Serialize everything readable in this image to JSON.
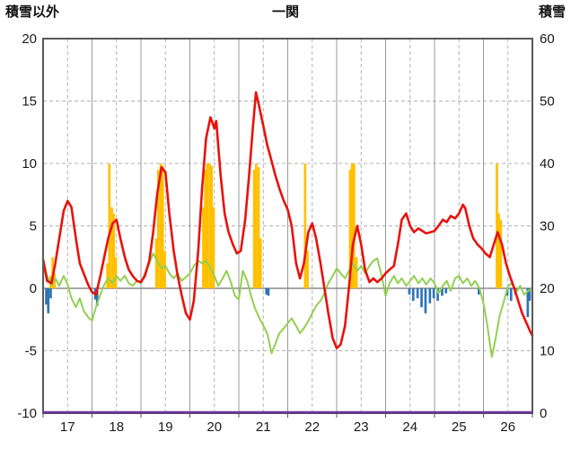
{
  "chart_data": {
    "type": "line+bar",
    "title": "一関",
    "left_axis": {
      "label": "積雪以外",
      "min": -10,
      "max": 20,
      "ticks": [
        20,
        15,
        10,
        5,
        0,
        -5,
        -10
      ]
    },
    "right_axis": {
      "label": "積雪",
      "min": 0,
      "max": 60,
      "ticks": [
        60,
        50,
        40,
        30,
        20,
        10,
        0
      ]
    },
    "x_axis": {
      "min": 17,
      "max": 27,
      "day_labels": [
        "17",
        "18",
        "19",
        "20",
        "21",
        "22",
        "23",
        "24",
        "25",
        "26"
      ]
    },
    "grid": {
      "horizontal": "dashed",
      "vertical_day": "solid",
      "vertical_half_day": "dashed",
      "zero_line": true
    },
    "colors": {
      "red_line": "#e8120c",
      "green_line": "#92d050",
      "orange_bars": "#ffc000",
      "blue_bars": "#2e75b6",
      "purple_line": "#7030a0",
      "border": "#595959",
      "gridline": "#b3b3b3",
      "text": "#1a1a1a"
    },
    "series": {
      "red_line": {
        "color": "#e8120c",
        "points": [
          [
            17.0,
            2.3
          ],
          [
            17.08,
            0.6
          ],
          [
            17.17,
            0.4
          ],
          [
            17.25,
            2.0
          ],
          [
            17.33,
            4.0
          ],
          [
            17.42,
            6.2
          ],
          [
            17.5,
            7.0
          ],
          [
            17.58,
            6.5
          ],
          [
            17.67,
            4.0
          ],
          [
            17.75,
            2.0
          ],
          [
            17.83,
            1.2
          ],
          [
            17.92,
            0.3
          ],
          [
            18.0,
            -0.3
          ],
          [
            18.08,
            -0.5
          ],
          [
            18.17,
            1.0
          ],
          [
            18.25,
            2.5
          ],
          [
            18.33,
            4.0
          ],
          [
            18.42,
            5.2
          ],
          [
            18.5,
            5.5
          ],
          [
            18.58,
            4.0
          ],
          [
            18.67,
            2.5
          ],
          [
            18.75,
            1.5
          ],
          [
            18.83,
            1.0
          ],
          [
            18.92,
            0.6
          ],
          [
            19.0,
            0.5
          ],
          [
            19.08,
            1.0
          ],
          [
            19.17,
            2.2
          ],
          [
            19.25,
            4.5
          ],
          [
            19.33,
            7.5
          ],
          [
            19.42,
            9.7
          ],
          [
            19.5,
            9.3
          ],
          [
            19.58,
            6.0
          ],
          [
            19.67,
            3.0
          ],
          [
            19.75,
            1.0
          ],
          [
            19.83,
            -0.5
          ],
          [
            19.92,
            -2.0
          ],
          [
            20.0,
            -2.5
          ],
          [
            20.08,
            -1.0
          ],
          [
            20.17,
            3.0
          ],
          [
            20.25,
            8.0
          ],
          [
            20.33,
            12.0
          ],
          [
            20.42,
            13.7
          ],
          [
            20.5,
            12.8
          ],
          [
            20.54,
            13.4
          ],
          [
            20.63,
            9.0
          ],
          [
            20.71,
            6.0
          ],
          [
            20.79,
            4.5
          ],
          [
            20.88,
            3.5
          ],
          [
            20.96,
            2.8
          ],
          [
            21.04,
            3.0
          ],
          [
            21.13,
            5.5
          ],
          [
            21.21,
            9.0
          ],
          [
            21.29,
            13.0
          ],
          [
            21.35,
            15.7
          ],
          [
            21.42,
            14.5
          ],
          [
            21.5,
            13.0
          ],
          [
            21.58,
            11.5
          ],
          [
            21.67,
            10.2
          ],
          [
            21.75,
            9.0
          ],
          [
            21.83,
            8.0
          ],
          [
            21.92,
            7.0
          ],
          [
            22.0,
            6.3
          ],
          [
            22.08,
            5.0
          ],
          [
            22.17,
            2.0
          ],
          [
            22.25,
            0.8
          ],
          [
            22.33,
            2.0
          ],
          [
            22.42,
            4.5
          ],
          [
            22.5,
            5.2
          ],
          [
            22.58,
            4.0
          ],
          [
            22.67,
            2.0
          ],
          [
            22.75,
            0.0
          ],
          [
            22.83,
            -2.0
          ],
          [
            22.92,
            -4.0
          ],
          [
            23.0,
            -4.8
          ],
          [
            23.08,
            -4.5
          ],
          [
            23.17,
            -3.0
          ],
          [
            23.25,
            0.0
          ],
          [
            23.33,
            3.5
          ],
          [
            23.42,
            5.0
          ],
          [
            23.5,
            3.5
          ],
          [
            23.58,
            1.5
          ],
          [
            23.67,
            0.5
          ],
          [
            23.75,
            0.8
          ],
          [
            23.83,
            0.5
          ],
          [
            23.92,
            0.8
          ],
          [
            24.0,
            1.2
          ],
          [
            24.08,
            1.5
          ],
          [
            24.17,
            1.8
          ],
          [
            24.25,
            3.5
          ],
          [
            24.33,
            5.5
          ],
          [
            24.42,
            6.0
          ],
          [
            24.5,
            5.0
          ],
          [
            24.58,
            4.5
          ],
          [
            24.67,
            4.8
          ],
          [
            24.75,
            4.6
          ],
          [
            24.83,
            4.4
          ],
          [
            24.92,
            4.5
          ],
          [
            25.0,
            4.6
          ],
          [
            25.08,
            5.0
          ],
          [
            25.17,
            5.5
          ],
          [
            25.25,
            5.3
          ],
          [
            25.33,
            5.8
          ],
          [
            25.42,
            5.6
          ],
          [
            25.5,
            6.0
          ],
          [
            25.58,
            6.7
          ],
          [
            25.63,
            6.4
          ],
          [
            25.71,
            5.0
          ],
          [
            25.79,
            4.0
          ],
          [
            25.88,
            3.5
          ],
          [
            25.96,
            3.2
          ],
          [
            26.04,
            2.8
          ],
          [
            26.13,
            2.5
          ],
          [
            26.21,
            3.5
          ],
          [
            26.29,
            4.5
          ],
          [
            26.38,
            3.5
          ],
          [
            26.46,
            2.0
          ],
          [
            26.54,
            1.0
          ],
          [
            26.63,
            0.0
          ],
          [
            26.71,
            -1.0
          ],
          [
            26.79,
            -2.0
          ],
          [
            26.88,
            -2.8
          ],
          [
            26.96,
            -3.5
          ],
          [
            27.0,
            -3.8
          ]
        ]
      },
      "green_line": {
        "color": "#92d050",
        "points": [
          [
            17.0,
            2.4
          ],
          [
            17.08,
            1.0
          ],
          [
            17.17,
            0.3
          ],
          [
            17.25,
            0.8
          ],
          [
            17.33,
            0.2
          ],
          [
            17.42,
            1.0
          ],
          [
            17.5,
            0.3
          ],
          [
            17.58,
            -0.8
          ],
          [
            17.67,
            -1.5
          ],
          [
            17.75,
            -0.8
          ],
          [
            17.83,
            -1.8
          ],
          [
            17.92,
            -2.3
          ],
          [
            18.0,
            -2.6
          ],
          [
            18.08,
            -1.5
          ],
          [
            18.17,
            -0.5
          ],
          [
            18.25,
            0.3
          ],
          [
            18.33,
            0.8
          ],
          [
            18.42,
            0.4
          ],
          [
            18.5,
            1.0
          ],
          [
            18.58,
            0.6
          ],
          [
            18.67,
            1.0
          ],
          [
            18.75,
            0.4
          ],
          [
            18.83,
            0.2
          ],
          [
            18.92,
            0.6
          ],
          [
            19.0,
            0.4
          ],
          [
            19.08,
            1.2
          ],
          [
            19.17,
            2.0
          ],
          [
            19.25,
            2.8
          ],
          [
            19.33,
            2.2
          ],
          [
            19.42,
            1.6
          ],
          [
            19.5,
            1.8
          ],
          [
            19.58,
            1.2
          ],
          [
            19.67,
            0.8
          ],
          [
            19.75,
            1.2
          ],
          [
            19.83,
            0.6
          ],
          [
            19.92,
            0.9
          ],
          [
            20.0,
            1.2
          ],
          [
            20.08,
            1.8
          ],
          [
            20.17,
            2.2
          ],
          [
            20.25,
            2.0
          ],
          [
            20.33,
            2.2
          ],
          [
            20.42,
            1.6
          ],
          [
            20.5,
            1.0
          ],
          [
            20.58,
            0.2
          ],
          [
            20.67,
            0.8
          ],
          [
            20.75,
            1.4
          ],
          [
            20.83,
            0.6
          ],
          [
            20.92,
            -0.6
          ],
          [
            21.0,
            -0.9
          ],
          [
            21.08,
            1.4
          ],
          [
            21.17,
            0.6
          ],
          [
            21.25,
            -0.6
          ],
          [
            21.33,
            -1.6
          ],
          [
            21.42,
            -2.4
          ],
          [
            21.5,
            -3.0
          ],
          [
            21.58,
            -3.6
          ],
          [
            21.67,
            -5.2
          ],
          [
            21.75,
            -4.4
          ],
          [
            21.83,
            -3.6
          ],
          [
            21.92,
            -3.2
          ],
          [
            22.0,
            -2.8
          ],
          [
            22.08,
            -2.4
          ],
          [
            22.17,
            -3.0
          ],
          [
            22.25,
            -3.6
          ],
          [
            22.33,
            -3.2
          ],
          [
            22.42,
            -2.6
          ],
          [
            22.5,
            -2.0
          ],
          [
            22.58,
            -1.4
          ],
          [
            22.67,
            -1.0
          ],
          [
            22.75,
            -0.4
          ],
          [
            22.83,
            0.4
          ],
          [
            22.92,
            1.0
          ],
          [
            23.0,
            1.6
          ],
          [
            23.08,
            1.2
          ],
          [
            23.17,
            0.8
          ],
          [
            23.25,
            1.4
          ],
          [
            23.33,
            2.0
          ],
          [
            23.42,
            1.4
          ],
          [
            23.5,
            1.8
          ],
          [
            23.58,
            1.2
          ],
          [
            23.67,
            1.8
          ],
          [
            23.75,
            2.2
          ],
          [
            23.83,
            2.4
          ],
          [
            23.92,
            1.0
          ],
          [
            24.0,
            -0.6
          ],
          [
            24.08,
            0.4
          ],
          [
            24.17,
            1.0
          ],
          [
            24.25,
            0.4
          ],
          [
            24.33,
            0.8
          ],
          [
            24.42,
            0.2
          ],
          [
            24.5,
            0.6
          ],
          [
            24.58,
            1.0
          ],
          [
            24.67,
            0.4
          ],
          [
            24.75,
            0.8
          ],
          [
            24.83,
            0.3
          ],
          [
            24.92,
            0.8
          ],
          [
            25.0,
            0.4
          ],
          [
            25.08,
            -0.4
          ],
          [
            25.17,
            0.2
          ],
          [
            25.25,
            0.6
          ],
          [
            25.33,
            -0.2
          ],
          [
            25.42,
            0.8
          ],
          [
            25.5,
            1.0
          ],
          [
            25.58,
            0.4
          ],
          [
            25.67,
            0.8
          ],
          [
            25.75,
            0.2
          ],
          [
            25.83,
            0.6
          ],
          [
            25.92,
            0.0
          ],
          [
            26.0,
            -1.2
          ],
          [
            26.08,
            -3.0
          ],
          [
            26.17,
            -5.5
          ],
          [
            26.25,
            -4.0
          ],
          [
            26.33,
            -2.2
          ],
          [
            26.42,
            -1.0
          ],
          [
            26.5,
            0.2
          ],
          [
            26.58,
            0.4
          ],
          [
            26.67,
            -0.3
          ],
          [
            26.75,
            0.2
          ],
          [
            26.83,
            -0.5
          ],
          [
            26.92,
            -0.2
          ],
          [
            27.0,
            0.0
          ]
        ]
      },
      "orange_bars": {
        "color": "#ffc000",
        "bars": [
          [
            17.13,
            1.0
          ],
          [
            17.17,
            2.5
          ],
          [
            17.21,
            1.2
          ],
          [
            18.29,
            2.0
          ],
          [
            18.33,
            10.0
          ],
          [
            18.38,
            6.5
          ],
          [
            18.42,
            6.0
          ],
          [
            18.46,
            2.5
          ],
          [
            19.29,
            4.0
          ],
          [
            19.33,
            9.5
          ],
          [
            19.38,
            10.0
          ],
          [
            19.42,
            9.8
          ],
          [
            19.46,
            3.0
          ],
          [
            20.25,
            6.5
          ],
          [
            20.29,
            9.5
          ],
          [
            20.33,
            10.0
          ],
          [
            20.38,
            10.0
          ],
          [
            20.42,
            9.8
          ],
          [
            20.46,
            6.5
          ],
          [
            21.29,
            9.5
          ],
          [
            21.33,
            10.0
          ],
          [
            21.38,
            9.7
          ],
          [
            21.42,
            4.0
          ],
          [
            22.33,
            10.0
          ],
          [
            22.38,
            3.0
          ],
          [
            23.25,
            9.5
          ],
          [
            23.29,
            10.0
          ],
          [
            23.33,
            10.0
          ],
          [
            23.38,
            2.5
          ],
          [
            26.25,
            10.0
          ],
          [
            26.29,
            6.0
          ],
          [
            26.33,
            5.5
          ]
        ]
      },
      "blue_bars": {
        "color": "#2e75b6",
        "bars": [
          [
            17.04,
            -1.3
          ],
          [
            17.08,
            -2.0
          ],
          [
            17.13,
            -0.8
          ],
          [
            18.04,
            -0.9
          ],
          [
            18.08,
            -1.4
          ],
          [
            21.54,
            -0.5
          ],
          [
            21.58,
            -0.6
          ],
          [
            24.46,
            -0.5
          ],
          [
            24.54,
            -1.0
          ],
          [
            24.63,
            -0.8
          ],
          [
            24.71,
            -1.5
          ],
          [
            24.79,
            -2.0
          ],
          [
            24.88,
            -1.2
          ],
          [
            24.96,
            -0.8
          ],
          [
            25.04,
            -1.0
          ],
          [
            25.13,
            -0.6
          ],
          [
            25.21,
            -0.4
          ],
          [
            25.88,
            -0.5
          ],
          [
            26.46,
            -0.6
          ],
          [
            26.54,
            -1.0
          ],
          [
            26.63,
            -0.5
          ],
          [
            26.88,
            -2.3
          ],
          [
            26.92,
            -1.0
          ]
        ]
      },
      "purple_line": {
        "color": "#7030a0",
        "axis": "right",
        "constant_value": 0
      }
    }
  }
}
